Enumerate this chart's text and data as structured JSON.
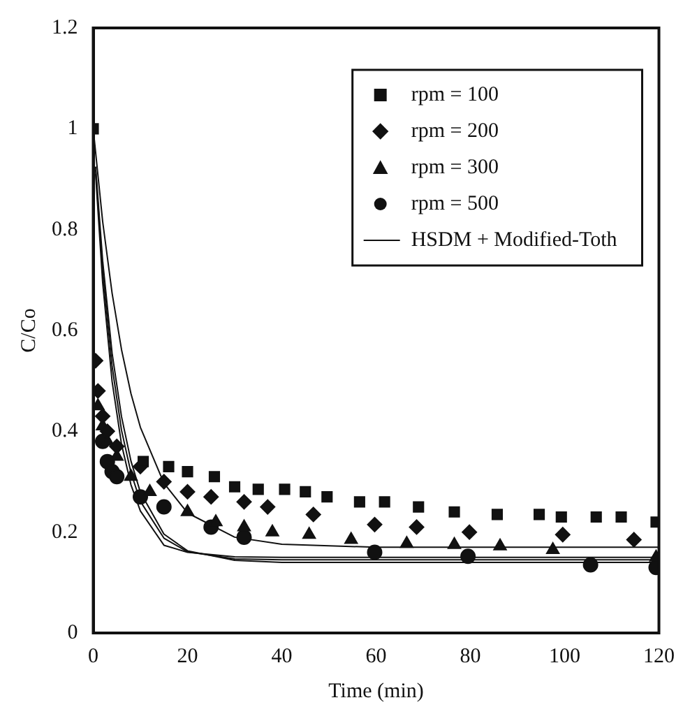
{
  "chart_data": {
    "type": "scatter",
    "xlabel": "Time (min)",
    "ylabel": "C/Co",
    "xlim": [
      0,
      120
    ],
    "xticks": [
      0,
      20,
      40,
      60,
      80,
      100,
      120
    ],
    "ylim": [
      0,
      1.2
    ],
    "yticks": [
      0,
      0.2,
      0.4,
      0.6,
      0.8,
      1,
      1.2
    ],
    "grid": false,
    "legend": "top right",
    "series": [
      {
        "name": "rpm = 100",
        "marker": "square",
        "color": "#111111",
        "x": [
          0,
          10.6,
          16,
          20,
          25.7,
          30,
          35,
          40.6,
          45,
          49.6,
          56.5,
          61.8,
          69,
          76.6,
          85.7,
          94.6,
          99.3,
          106.7,
          112,
          119.4
        ],
        "values": [
          1,
          0.34,
          0.33,
          0.32,
          0.31,
          0.29,
          0.285,
          0.285,
          0.28,
          0.27,
          0.26,
          0.26,
          0.25,
          0.24,
          0.235,
          0.235,
          0.23,
          0.23,
          0.23,
          0.22
        ]
      },
      {
        "name": "rpm = 200",
        "marker": "diamond",
        "color": "#111111",
        "x": [
          0.5,
          1,
          2,
          3,
          5,
          10,
          15,
          20,
          25,
          32,
          37,
          46.7,
          59.7,
          68.6,
          79.8,
          99.6,
          114.7
        ],
        "values": [
          0.54,
          0.48,
          0.43,
          0.4,
          0.37,
          0.33,
          0.3,
          0.28,
          0.27,
          0.26,
          0.25,
          0.235,
          0.215,
          0.21,
          0.2,
          0.195,
          0.185
        ]
      },
      {
        "name": "rpm = 300",
        "marker": "triangle",
        "color": "#111111",
        "x": [
          1,
          2,
          3,
          5,
          8,
          12,
          20,
          26,
          32,
          38,
          45.8,
          54.7,
          66.5,
          76.6,
          86.3,
          97.5,
          119.4
        ],
        "values": [
          0.45,
          0.41,
          0.38,
          0.35,
          0.31,
          0.28,
          0.24,
          0.22,
          0.21,
          0.2,
          0.195,
          0.185,
          0.177,
          0.175,
          0.172,
          0.165,
          0.15
        ]
      },
      {
        "name": "rpm = 500",
        "marker": "circle",
        "color": "#111111",
        "x": [
          2,
          3,
          4,
          5,
          10,
          15,
          25,
          32,
          59.7,
          79.5,
          105.5,
          119.4
        ],
        "values": [
          0.38,
          0.34,
          0.32,
          0.31,
          0.27,
          0.25,
          0.21,
          0.19,
          0.16,
          0.152,
          0.135,
          0.13
        ]
      },
      {
        "name": "HSDM + Modified-Toth",
        "type": "line",
        "marker": "none",
        "color": "#111111",
        "x": [
          0,
          2,
          4,
          6,
          8,
          10,
          15,
          20,
          30,
          40,
          60,
          80,
          120
        ],
        "values": [
          1,
          0.816,
          0.674,
          0.562,
          0.475,
          0.408,
          0.297,
          0.238,
          0.19,
          0.176,
          0.17,
          0.17,
          0.17
        ]
      },
      {
        "type": "line",
        "marker": "none",
        "color": "#111111",
        "x": [
          0.5,
          2,
          4,
          6,
          8,
          10,
          15,
          20,
          30,
          40,
          60,
          80,
          120
        ],
        "values": [
          0.925,
          0.738,
          0.555,
          0.429,
          0.341,
          0.279,
          0.196,
          0.163,
          0.144,
          0.14,
          0.14,
          0.14,
          0.14
        ]
      },
      {
        "type": "line",
        "marker": "none",
        "color": "#111111",
        "x": [
          0.5,
          2,
          4,
          6,
          8,
          10,
          15,
          20,
          30,
          40,
          60,
          80,
          120
        ],
        "values": [
          0.919,
          0.718,
          0.529,
          0.402,
          0.318,
          0.261,
          0.188,
          0.161,
          0.147,
          0.145,
          0.145,
          0.145,
          0.145
        ]
      },
      {
        "type": "line",
        "marker": "none",
        "color": "#111111",
        "x": [
          0.5,
          2,
          4,
          6,
          8,
          10,
          15,
          20,
          30,
          40,
          60,
          80,
          120
        ],
        "values": [
          0.911,
          0.695,
          0.499,
          0.374,
          0.294,
          0.242,
          0.174,
          0.16,
          0.151,
          0.15,
          0.15,
          0.15,
          0.15
        ]
      }
    ]
  }
}
